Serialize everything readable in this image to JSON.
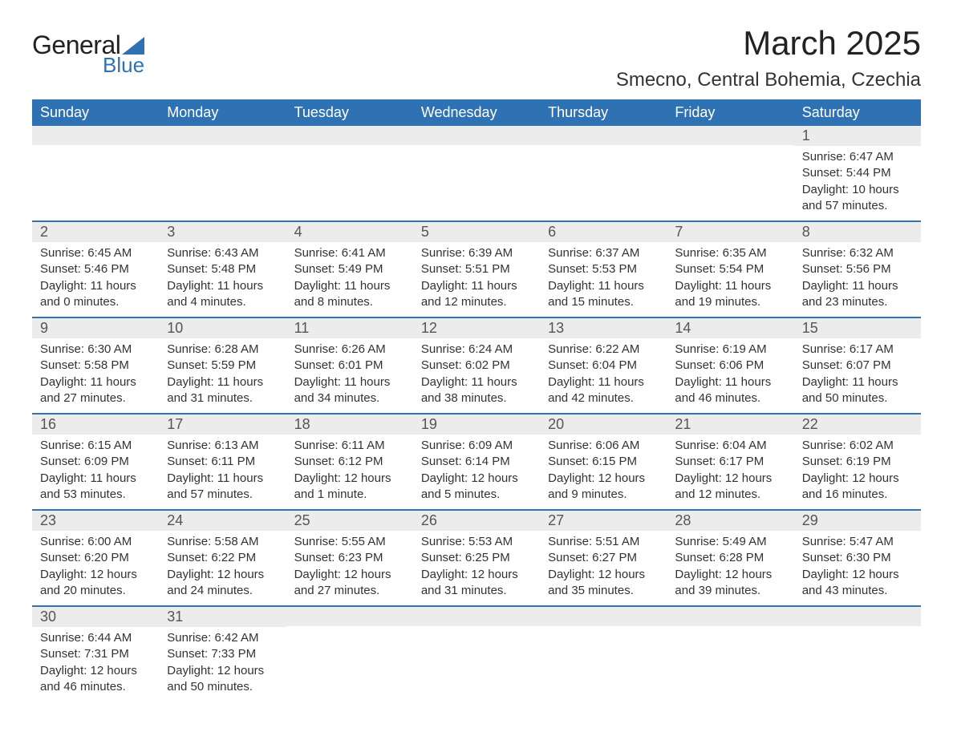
{
  "logo": {
    "word1": "General",
    "word2": "Blue"
  },
  "title": "March 2025",
  "location": "Smecno, Central Bohemia, Czechia",
  "colors": {
    "header_bg": "#2f72b4",
    "header_text": "#ffffff",
    "daynum_bg": "#ececec",
    "row_divider": "#2f72b4",
    "body_text": "#333333",
    "page_bg": "#ffffff"
  },
  "typography": {
    "title_fontsize": 42,
    "location_fontsize": 24,
    "header_fontsize": 18,
    "daynum_fontsize": 18,
    "body_fontsize": 15
  },
  "layout": {
    "columns": 7,
    "rows": 6
  },
  "weekdays": [
    "Sunday",
    "Monday",
    "Tuesday",
    "Wednesday",
    "Thursday",
    "Friday",
    "Saturday"
  ],
  "labels": {
    "sunrise": "Sunrise:",
    "sunset": "Sunset:",
    "daylight": "Daylight:"
  },
  "weeks": [
    [
      {
        "day": null
      },
      {
        "day": null
      },
      {
        "day": null
      },
      {
        "day": null
      },
      {
        "day": null
      },
      {
        "day": null
      },
      {
        "day": 1,
        "sunrise": "6:47 AM",
        "sunset": "5:44 PM",
        "daylight": "10 hours and 57 minutes."
      }
    ],
    [
      {
        "day": 2,
        "sunrise": "6:45 AM",
        "sunset": "5:46 PM",
        "daylight": "11 hours and 0 minutes."
      },
      {
        "day": 3,
        "sunrise": "6:43 AM",
        "sunset": "5:48 PM",
        "daylight": "11 hours and 4 minutes."
      },
      {
        "day": 4,
        "sunrise": "6:41 AM",
        "sunset": "5:49 PM",
        "daylight": "11 hours and 8 minutes."
      },
      {
        "day": 5,
        "sunrise": "6:39 AM",
        "sunset": "5:51 PM",
        "daylight": "11 hours and 12 minutes."
      },
      {
        "day": 6,
        "sunrise": "6:37 AM",
        "sunset": "5:53 PM",
        "daylight": "11 hours and 15 minutes."
      },
      {
        "day": 7,
        "sunrise": "6:35 AM",
        "sunset": "5:54 PM",
        "daylight": "11 hours and 19 minutes."
      },
      {
        "day": 8,
        "sunrise": "6:32 AM",
        "sunset": "5:56 PM",
        "daylight": "11 hours and 23 minutes."
      }
    ],
    [
      {
        "day": 9,
        "sunrise": "6:30 AM",
        "sunset": "5:58 PM",
        "daylight": "11 hours and 27 minutes."
      },
      {
        "day": 10,
        "sunrise": "6:28 AM",
        "sunset": "5:59 PM",
        "daylight": "11 hours and 31 minutes."
      },
      {
        "day": 11,
        "sunrise": "6:26 AM",
        "sunset": "6:01 PM",
        "daylight": "11 hours and 34 minutes."
      },
      {
        "day": 12,
        "sunrise": "6:24 AM",
        "sunset": "6:02 PM",
        "daylight": "11 hours and 38 minutes."
      },
      {
        "day": 13,
        "sunrise": "6:22 AM",
        "sunset": "6:04 PM",
        "daylight": "11 hours and 42 minutes."
      },
      {
        "day": 14,
        "sunrise": "6:19 AM",
        "sunset": "6:06 PM",
        "daylight": "11 hours and 46 minutes."
      },
      {
        "day": 15,
        "sunrise": "6:17 AM",
        "sunset": "6:07 PM",
        "daylight": "11 hours and 50 minutes."
      }
    ],
    [
      {
        "day": 16,
        "sunrise": "6:15 AM",
        "sunset": "6:09 PM",
        "daylight": "11 hours and 53 minutes."
      },
      {
        "day": 17,
        "sunrise": "6:13 AM",
        "sunset": "6:11 PM",
        "daylight": "11 hours and 57 minutes."
      },
      {
        "day": 18,
        "sunrise": "6:11 AM",
        "sunset": "6:12 PM",
        "daylight": "12 hours and 1 minute."
      },
      {
        "day": 19,
        "sunrise": "6:09 AM",
        "sunset": "6:14 PM",
        "daylight": "12 hours and 5 minutes."
      },
      {
        "day": 20,
        "sunrise": "6:06 AM",
        "sunset": "6:15 PM",
        "daylight": "12 hours and 9 minutes."
      },
      {
        "day": 21,
        "sunrise": "6:04 AM",
        "sunset": "6:17 PM",
        "daylight": "12 hours and 12 minutes."
      },
      {
        "day": 22,
        "sunrise": "6:02 AM",
        "sunset": "6:19 PM",
        "daylight": "12 hours and 16 minutes."
      }
    ],
    [
      {
        "day": 23,
        "sunrise": "6:00 AM",
        "sunset": "6:20 PM",
        "daylight": "12 hours and 20 minutes."
      },
      {
        "day": 24,
        "sunrise": "5:58 AM",
        "sunset": "6:22 PM",
        "daylight": "12 hours and 24 minutes."
      },
      {
        "day": 25,
        "sunrise": "5:55 AM",
        "sunset": "6:23 PM",
        "daylight": "12 hours and 27 minutes."
      },
      {
        "day": 26,
        "sunrise": "5:53 AM",
        "sunset": "6:25 PM",
        "daylight": "12 hours and 31 minutes."
      },
      {
        "day": 27,
        "sunrise": "5:51 AM",
        "sunset": "6:27 PM",
        "daylight": "12 hours and 35 minutes."
      },
      {
        "day": 28,
        "sunrise": "5:49 AM",
        "sunset": "6:28 PM",
        "daylight": "12 hours and 39 minutes."
      },
      {
        "day": 29,
        "sunrise": "5:47 AM",
        "sunset": "6:30 PM",
        "daylight": "12 hours and 43 minutes."
      }
    ],
    [
      {
        "day": 30,
        "sunrise": "6:44 AM",
        "sunset": "7:31 PM",
        "daylight": "12 hours and 46 minutes."
      },
      {
        "day": 31,
        "sunrise": "6:42 AM",
        "sunset": "7:33 PM",
        "daylight": "12 hours and 50 minutes."
      },
      {
        "day": null
      },
      {
        "day": null
      },
      {
        "day": null
      },
      {
        "day": null
      },
      {
        "day": null
      }
    ]
  ]
}
